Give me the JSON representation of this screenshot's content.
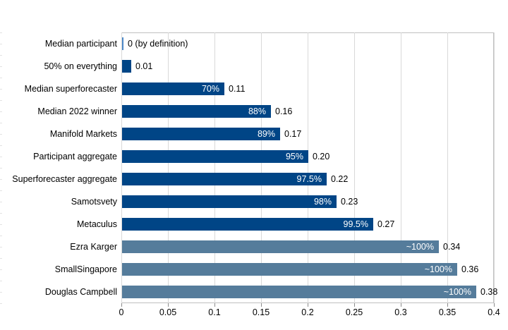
{
  "chart_data": {
    "type": "bar",
    "orientation": "horizontal",
    "title": "",
    "xlabel": "",
    "ylabel": "",
    "xlim": [
      0,
      0.4
    ],
    "grid": "vertical",
    "legend": "none",
    "categories": [
      "Median participant",
      "50% on everything",
      "Median superforecaster",
      "Median 2022 winner",
      "Manifold Markets",
      "Participant aggregate",
      "Superforecaster aggregate",
      "Samotsvety",
      "Metaculus",
      "Ezra Karger",
      "SmallSingapore",
      "Douglas Campbell"
    ],
    "values": [
      0,
      0.01,
      0.11,
      0.16,
      0.17,
      0.2,
      0.22,
      0.23,
      0.27,
      0.34,
      0.36,
      0.38
    ],
    "inside_labels": [
      null,
      null,
      "70%",
      "88%",
      "89%",
      "95%",
      "97.5%",
      "98%",
      "99.5%",
      "~100%",
      "~100%",
      "~100%"
    ],
    "value_labels": [
      "0 (by definition)",
      "0.01",
      "0.11",
      "0.16",
      "0.17",
      "0.20",
      "0.22",
      "0.23",
      "0.27",
      "0.34",
      "0.36",
      "0.38"
    ],
    "bar_color_keys": [
      "zero",
      "dark",
      "dark",
      "dark",
      "dark",
      "dark",
      "dark",
      "dark",
      "dark",
      "light",
      "light",
      "light"
    ],
    "x_tick_values": [
      0,
      0.05,
      0.1,
      0.15,
      0.2,
      0.25,
      0.3,
      0.35,
      0.4
    ],
    "x_tick_labels": [
      "0",
      "0.05",
      "0.1",
      "0.15",
      "0.2",
      "0.25",
      "0.3",
      "0.35",
      "0.4"
    ]
  },
  "colors": {
    "bar_dark": "#004586",
    "bar_light": "#557c9b",
    "bar_zero": "#4e89c8",
    "gridline": "#d9d9d9",
    "plot_border": "#c0c0c0",
    "axis_tick": "#8c8c8c",
    "inside_label": "#ffffff",
    "value_label": "#000000",
    "background": "#ffffff"
  }
}
